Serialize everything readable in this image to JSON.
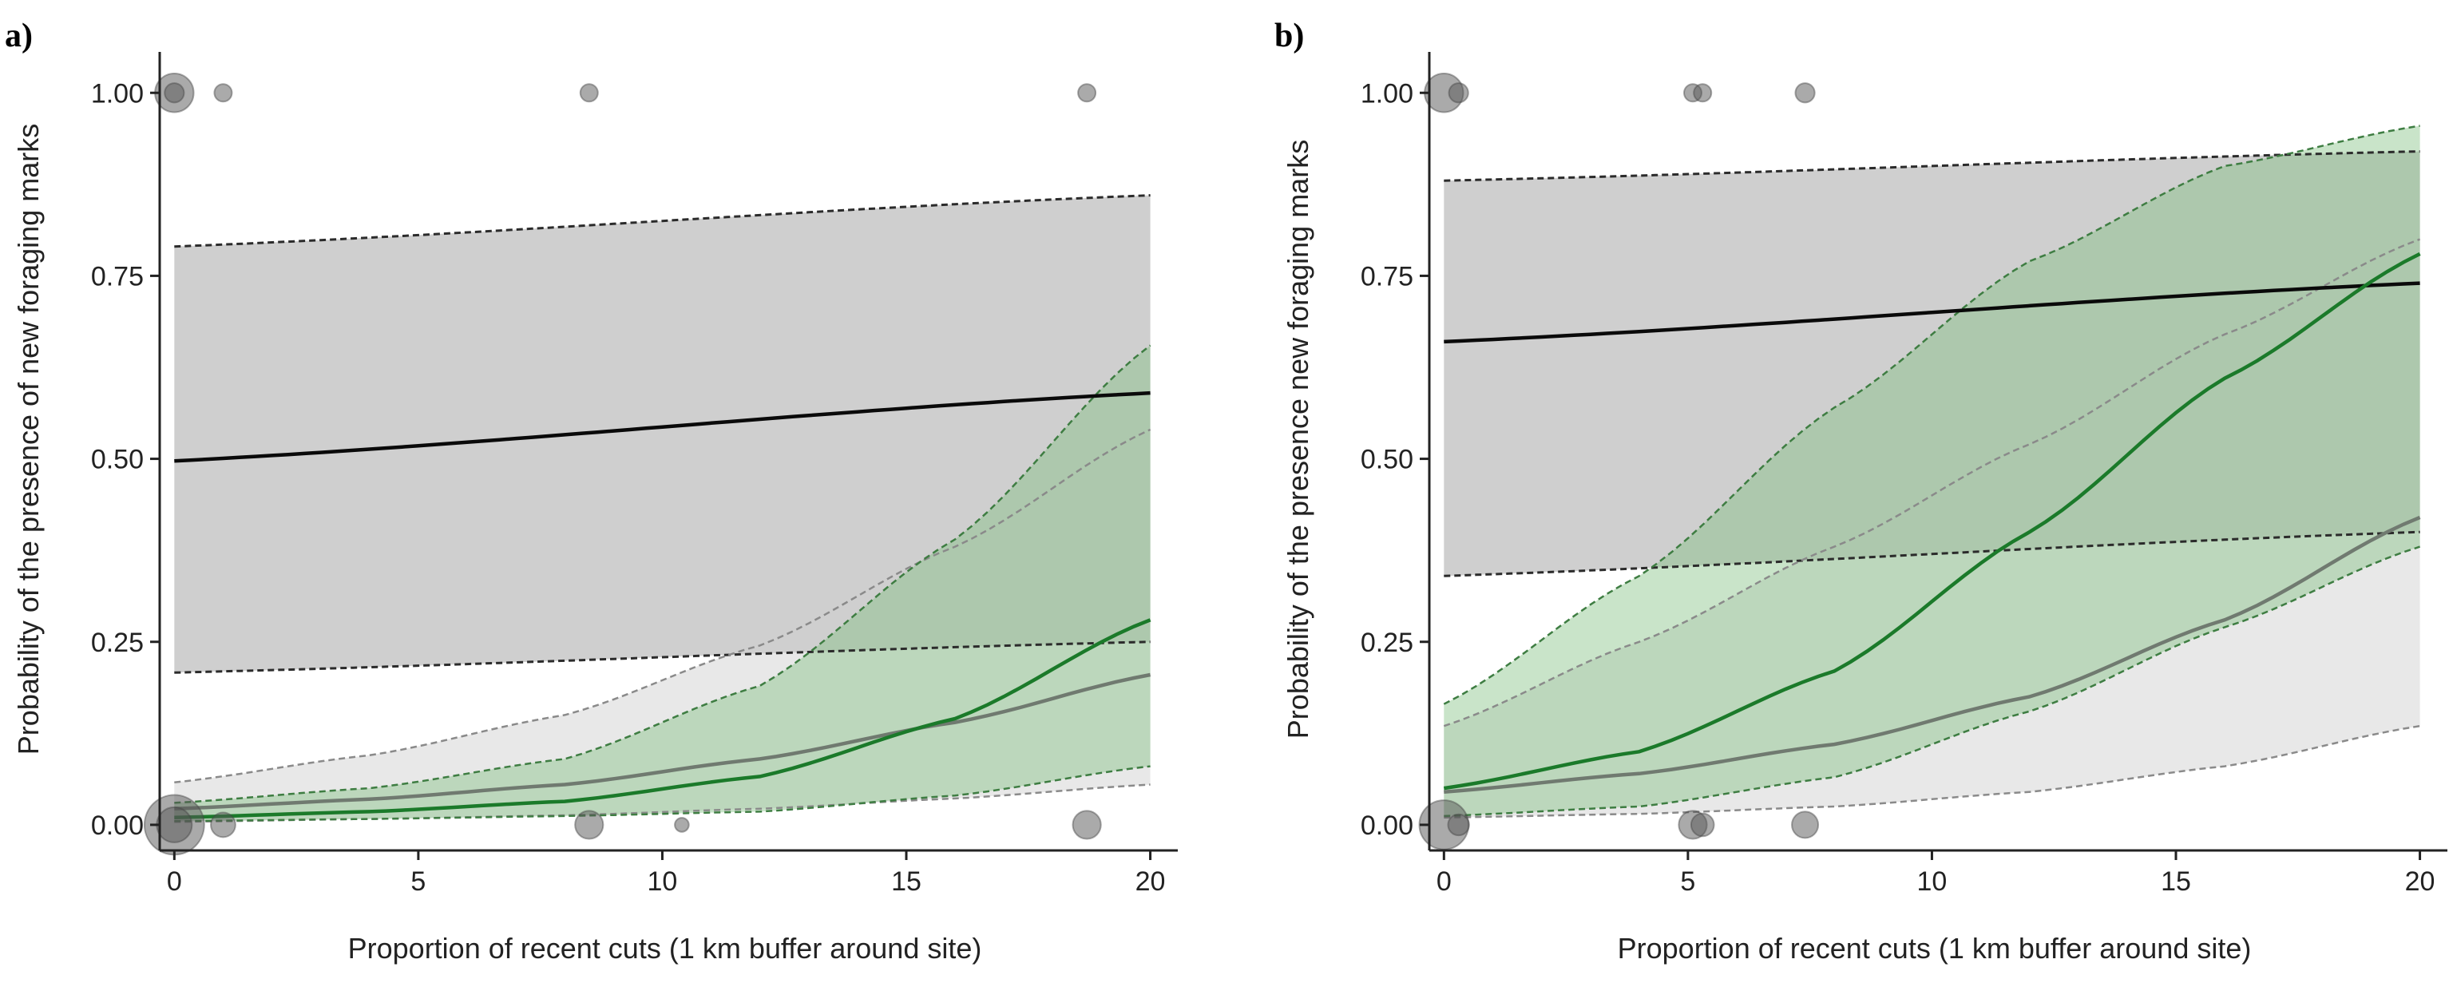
{
  "colors": {
    "black_line": "#0a0a0a",
    "grey_band": "#cfcfcf",
    "light_grey_band": "#e6e6e6",
    "grey_line": "#707a70",
    "green_line": "#1b7a2a",
    "green_band": "#7fbf7f",
    "dashed": "#2b2b2b",
    "points": "#555555"
  },
  "chart_data": [
    {
      "panel_label": "a)",
      "type": "line",
      "xlabel": "Proportion of recent cuts (1 km buffer around site)",
      "ylabel": "Probability of the presence of new foraging marks",
      "xlim": [
        -0.3,
        20.4
      ],
      "ylim": [
        -0.035,
        1.045
      ],
      "x_ticks": [
        0,
        5,
        10,
        15,
        20
      ],
      "x_tick_labels": [
        "0",
        "5",
        "10",
        "15",
        "20"
      ],
      "y_ticks": [
        0,
        0.25,
        0.5,
        0.75,
        1.0
      ],
      "y_tick_labels": [
        "0.00",
        "0.25",
        "0.50",
        "0.75",
        "1.00"
      ],
      "series": [
        {
          "name": "black fit",
          "x": [
            0,
            20
          ],
          "y": [
            0.497,
            0.59
          ],
          "lower": [
            0.208,
            0.25
          ],
          "upper": [
            0.79,
            0.86
          ]
        },
        {
          "name": "grey fit",
          "x": [
            0,
            4,
            8,
            12,
            16,
            20
          ],
          "y": [
            0.022,
            0.035,
            0.055,
            0.09,
            0.14,
            0.205
          ],
          "lower": [
            0.004,
            0.008,
            0.013,
            0.022,
            0.036,
            0.055
          ],
          "upper": [
            0.058,
            0.095,
            0.15,
            0.245,
            0.38,
            0.54
          ]
        },
        {
          "name": "green fit",
          "x": [
            0,
            4,
            8,
            12,
            16,
            20
          ],
          "y": [
            0.01,
            0.018,
            0.032,
            0.066,
            0.145,
            0.28
          ],
          "lower": [
            0.005,
            0.008,
            0.012,
            0.018,
            0.04,
            0.08
          ],
          "upper": [
            0.03,
            0.05,
            0.09,
            0.19,
            0.39,
            0.655
          ]
        }
      ],
      "points": [
        {
          "x": 0,
          "y": 1,
          "size": 2.2
        },
        {
          "x": 0,
          "y": 1,
          "size": 1.1
        },
        {
          "x": 1,
          "y": 1,
          "size": 1
        },
        {
          "x": 8.5,
          "y": 1,
          "size": 1
        },
        {
          "x": 18.7,
          "y": 1,
          "size": 1
        },
        {
          "x": 0,
          "y": 0,
          "size": 3.4
        },
        {
          "x": 0,
          "y": 0,
          "size": 2.0
        },
        {
          "x": 1,
          "y": 0,
          "size": 1.4
        },
        {
          "x": 8.5,
          "y": 0,
          "size": 1.6
        },
        {
          "x": 10.4,
          "y": 0,
          "size": 0.8
        },
        {
          "x": 18.7,
          "y": 0,
          "size": 1.6
        }
      ]
    },
    {
      "panel_label": "b)",
      "type": "line",
      "xlabel": "Proportion of recent cuts (1 km buffer around site)",
      "ylabel": "Probability of the presence new foraging marks",
      "xlim": [
        -0.3,
        20.4
      ],
      "ylim": [
        -0.035,
        1.045
      ],
      "x_ticks": [
        0,
        5,
        10,
        15,
        20
      ],
      "x_tick_labels": [
        "0",
        "5",
        "10",
        "15",
        "20"
      ],
      "y_ticks": [
        0,
        0.25,
        0.5,
        0.75,
        1.0
      ],
      "y_tick_labels": [
        "0.00",
        "0.25",
        "0.50",
        "0.75",
        "1.00"
      ],
      "series": [
        {
          "name": "black fit",
          "x": [
            0,
            20
          ],
          "y": [
            0.66,
            0.74
          ],
          "lower": [
            0.34,
            0.4
          ],
          "upper": [
            0.88,
            0.92
          ]
        },
        {
          "name": "grey fit",
          "x": [
            0,
            4,
            8,
            12,
            16,
            20
          ],
          "y": [
            0.045,
            0.07,
            0.11,
            0.175,
            0.28,
            0.42
          ],
          "lower": [
            0.01,
            0.015,
            0.025,
            0.045,
            0.08,
            0.135
          ],
          "upper": [
            0.135,
            0.25,
            0.38,
            0.52,
            0.67,
            0.8
          ]
        },
        {
          "name": "green fit",
          "x": [
            0,
            4,
            8,
            12,
            16,
            20
          ],
          "y": [
            0.05,
            0.1,
            0.21,
            0.4,
            0.61,
            0.78
          ],
          "lower": [
            0.012,
            0.025,
            0.065,
            0.155,
            0.27,
            0.38
          ],
          "upper": [
            0.165,
            0.34,
            0.57,
            0.77,
            0.9,
            0.955
          ]
        }
      ],
      "points": [
        {
          "x": 0,
          "y": 1,
          "size": 2.2
        },
        {
          "x": 0.3,
          "y": 1,
          "size": 1.1
        },
        {
          "x": 5.1,
          "y": 1,
          "size": 1
        },
        {
          "x": 5.3,
          "y": 1,
          "size": 1
        },
        {
          "x": 7.4,
          "y": 1,
          "size": 1.1
        },
        {
          "x": 0,
          "y": 0,
          "size": 2.8
        },
        {
          "x": 0.3,
          "y": 0,
          "size": 1.2
        },
        {
          "x": 5.1,
          "y": 0,
          "size": 1.6
        },
        {
          "x": 5.3,
          "y": 0,
          "size": 1.3
        },
        {
          "x": 7.4,
          "y": 0,
          "size": 1.5
        }
      ]
    }
  ]
}
